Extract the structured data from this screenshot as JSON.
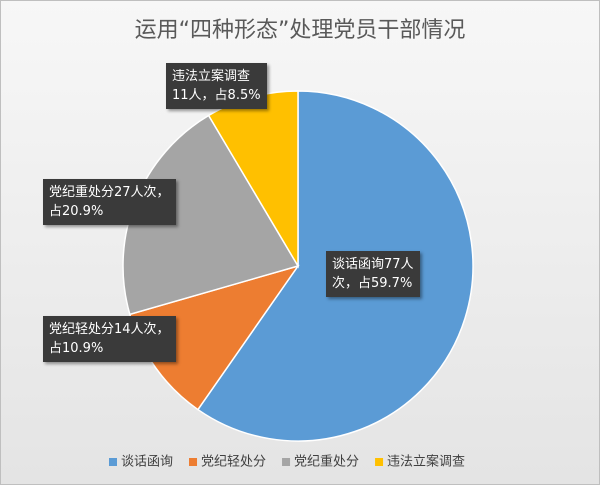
{
  "chart_data": {
    "type": "pie",
    "title": "运用“四种形态”处理党员干部情况",
    "categories": [
      "谈话函询",
      "党纪轻处分",
      "党纪重处分",
      "违法立案调查"
    ],
    "values": [
      77,
      14,
      27,
      11
    ],
    "value_labels": [
      "谈话函询77人\n次，占59.7%",
      "党纪轻处分14人次，\n占10.9%",
      "党纪重处分27人次，\n占20.9%",
      "违法立案调查\n11人，占8.5%"
    ],
    "colors": [
      "#5b9bd5",
      "#ed7d31",
      "#a5a5a5",
      "#ffc000"
    ],
    "legend": "bottom"
  }
}
